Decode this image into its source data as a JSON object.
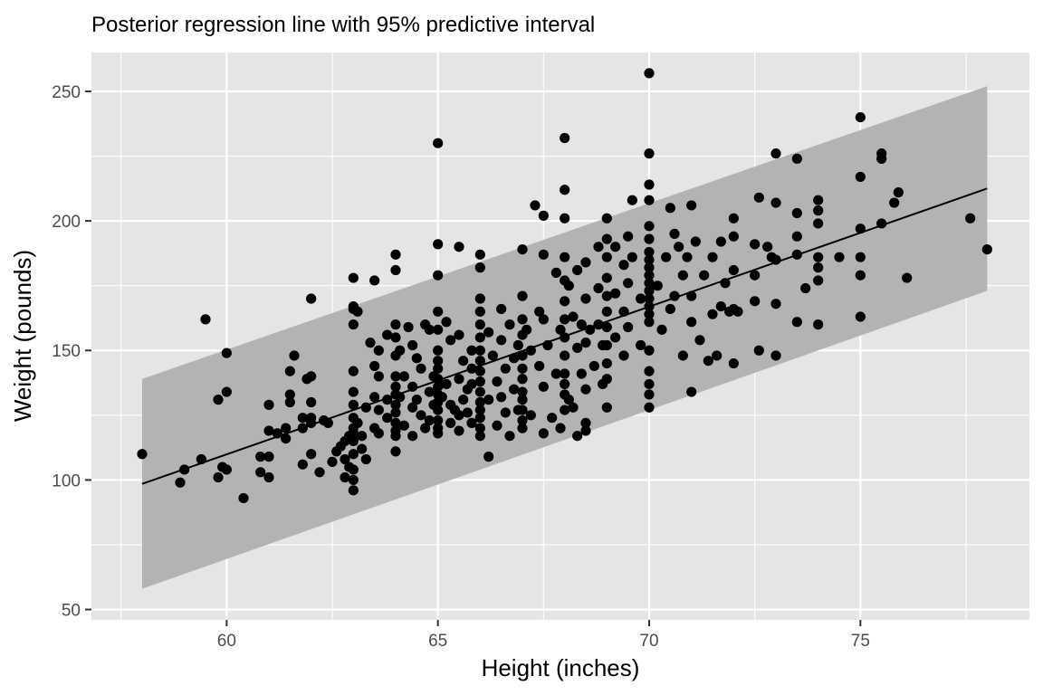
{
  "chart_data": {
    "type": "scatter",
    "title": "Posterior regression line with 95% predictive interval",
    "xlabel": "Height (inches)",
    "ylabel": "Weight (pounds)",
    "xlim": [
      56.8,
      79.0
    ],
    "ylim": [
      46,
      265
    ],
    "x_ticks": [
      60,
      65,
      70,
      75
    ],
    "y_ticks": [
      50,
      100,
      150,
      200,
      250
    ],
    "grid": true,
    "background": "#e5e5e5",
    "grid_color": "#ffffff",
    "point_color": "#000000",
    "band_color": "#b3b3b3",
    "regression_line": {
      "x": [
        58,
        78
      ],
      "y": [
        98.5,
        212.5
      ]
    },
    "interval_band": {
      "x": [
        58,
        78
      ],
      "lower": [
        58,
        173
      ],
      "upper": [
        139,
        252
      ]
    },
    "points": [
      [
        58,
        110
      ],
      [
        58.9,
        99
      ],
      [
        59,
        104
      ],
      [
        59.4,
        108
      ],
      [
        59.5,
        162
      ],
      [
        59.8,
        131
      ],
      [
        59.8,
        101
      ],
      [
        59.9,
        105
      ],
      [
        60,
        149
      ],
      [
        60,
        134
      ],
      [
        60,
        104
      ],
      [
        60.4,
        93
      ],
      [
        60.8,
        109
      ],
      [
        60.8,
        103
      ],
      [
        61,
        129
      ],
      [
        61,
        119
      ],
      [
        61,
        109
      ],
      [
        61,
        101
      ],
      [
        61.2,
        118
      ],
      [
        61.4,
        120
      ],
      [
        61.4,
        116
      ],
      [
        61.5,
        142
      ],
      [
        61.5,
        133
      ],
      [
        61.5,
        130
      ],
      [
        61.6,
        148
      ],
      [
        61.8,
        124
      ],
      [
        61.8,
        120
      ],
      [
        61.8,
        106
      ],
      [
        61.9,
        139
      ],
      [
        62,
        140
      ],
      [
        62,
        130
      ],
      [
        62,
        124
      ],
      [
        62,
        122
      ],
      [
        62,
        110
      ],
      [
        62,
        170
      ],
      [
        62.2,
        103
      ],
      [
        62.3,
        123
      ],
      [
        62.4,
        122
      ],
      [
        62.5,
        107
      ],
      [
        62.6,
        111
      ],
      [
        62.7,
        113
      ],
      [
        62.8,
        115
      ],
      [
        62.8,
        108
      ],
      [
        62.8,
        101
      ],
      [
        62.9,
        117
      ],
      [
        62.9,
        105
      ],
      [
        63,
        178
      ],
      [
        63,
        167
      ],
      [
        63,
        166
      ],
      [
        63,
        160
      ],
      [
        63,
        142
      ],
      [
        63,
        134
      ],
      [
        63,
        129
      ],
      [
        63,
        124
      ],
      [
        63,
        120
      ],
      [
        63,
        118
      ],
      [
        63,
        115
      ],
      [
        63,
        110
      ],
      [
        63,
        104
      ],
      [
        63,
        100
      ],
      [
        63,
        96
      ],
      [
        63.1,
        165
      ],
      [
        63.1,
        122
      ],
      [
        63.2,
        117
      ],
      [
        63.2,
        112
      ],
      [
        63.3,
        108
      ],
      [
        63.3,
        128
      ],
      [
        63.4,
        153
      ],
      [
        63.5,
        177
      ],
      [
        63.5,
        144
      ],
      [
        63.5,
        132
      ],
      [
        63.5,
        120
      ],
      [
        63.6,
        150
      ],
      [
        63.6,
        140
      ],
      [
        63.6,
        127
      ],
      [
        63.6,
        118
      ],
      [
        63.8,
        156
      ],
      [
        63.8,
        131
      ],
      [
        63.8,
        124
      ],
      [
        64,
        187
      ],
      [
        64,
        181
      ],
      [
        64,
        160
      ],
      [
        64,
        155
      ],
      [
        64,
        148
      ],
      [
        64,
        140
      ],
      [
        64,
        136
      ],
      [
        64,
        133
      ],
      [
        64,
        129
      ],
      [
        64,
        126
      ],
      [
        64,
        122
      ],
      [
        64,
        119
      ],
      [
        64,
        117
      ],
      [
        64,
        111
      ],
      [
        64.1,
        150
      ],
      [
        64.1,
        132
      ],
      [
        64.2,
        140
      ],
      [
        64.2,
        121
      ],
      [
        64.3,
        159
      ],
      [
        64.4,
        152
      ],
      [
        64.4,
        136
      ],
      [
        64.4,
        128
      ],
      [
        64.4,
        117
      ],
      [
        64.5,
        147
      ],
      [
        64.5,
        131
      ],
      [
        64.6,
        143
      ],
      [
        64.6,
        125
      ],
      [
        64.7,
        160
      ],
      [
        64.7,
        120
      ],
      [
        64.8,
        158
      ],
      [
        64.8,
        134
      ],
      [
        64.8,
        123
      ],
      [
        64.9,
        140
      ],
      [
        64.9,
        129
      ],
      [
        65,
        230
      ],
      [
        65,
        191
      ],
      [
        65,
        179
      ],
      [
        65,
        165
      ],
      [
        65,
        158
      ],
      [
        65,
        150
      ],
      [
        65,
        146
      ],
      [
        65,
        143
      ],
      [
        65,
        139
      ],
      [
        65,
        136
      ],
      [
        65,
        133
      ],
      [
        65,
        130
      ],
      [
        65,
        127
      ],
      [
        65,
        123
      ],
      [
        65,
        120
      ],
      [
        65,
        118
      ],
      [
        65.1,
        132
      ],
      [
        65.2,
        161
      ],
      [
        65.2,
        137
      ],
      [
        65.3,
        129
      ],
      [
        65.3,
        122
      ],
      [
        65.3,
        154
      ],
      [
        65.4,
        127
      ],
      [
        65.5,
        190
      ],
      [
        65.5,
        156
      ],
      [
        65.5,
        139
      ],
      [
        65.5,
        125
      ],
      [
        65.5,
        119
      ],
      [
        65.6,
        131
      ],
      [
        65.6,
        146
      ],
      [
        65.7,
        135
      ],
      [
        65.7,
        126
      ],
      [
        65.8,
        150
      ],
      [
        65.8,
        143
      ],
      [
        65.8,
        137
      ],
      [
        65.8,
        122
      ],
      [
        66,
        187
      ],
      [
        66,
        182
      ],
      [
        66,
        170
      ],
      [
        66,
        165
      ],
      [
        66,
        160
      ],
      [
        66,
        155
      ],
      [
        66,
        150
      ],
      [
        66,
        146
      ],
      [
        66,
        142
      ],
      [
        66,
        138
      ],
      [
        66,
        134
      ],
      [
        66,
        130
      ],
      [
        66,
        127
      ],
      [
        66,
        124
      ],
      [
        66,
        120
      ],
      [
        66,
        117
      ],
      [
        66.2,
        131
      ],
      [
        66.2,
        157
      ],
      [
        66.2,
        109
      ],
      [
        66.3,
        148
      ],
      [
        66.4,
        138
      ],
      [
        66.4,
        121
      ],
      [
        66.5,
        166
      ],
      [
        66.5,
        154
      ],
      [
        66.5,
        132
      ],
      [
        66.6,
        143
      ],
      [
        66.6,
        126
      ],
      [
        66.7,
        160
      ],
      [
        66.7,
        117
      ],
      [
        66.8,
        147
      ],
      [
        66.8,
        135
      ],
      [
        66.9,
        152
      ],
      [
        66.9,
        127
      ],
      [
        67,
        189
      ],
      [
        67,
        171
      ],
      [
        67,
        162
      ],
      [
        67,
        156
      ],
      [
        67,
        148
      ],
      [
        67,
        143
      ],
      [
        67,
        139
      ],
      [
        67,
        134
      ],
      [
        67,
        131
      ],
      [
        67,
        127
      ],
      [
        67,
        123
      ],
      [
        67,
        120
      ],
      [
        67.1,
        158
      ],
      [
        67.2,
        150
      ],
      [
        67.2,
        125
      ],
      [
        67.3,
        206
      ],
      [
        67.4,
        165
      ],
      [
        67.4,
        144
      ],
      [
        67.5,
        202
      ],
      [
        67.5,
        187
      ],
      [
        67.5,
        162
      ],
      [
        67.5,
        136
      ],
      [
        67.5,
        118
      ],
      [
        67.6,
        152
      ],
      [
        67.7,
        124
      ],
      [
        67.8,
        180
      ],
      [
        67.8,
        141
      ],
      [
        67.9,
        158
      ],
      [
        67.9,
        120
      ],
      [
        68,
        232
      ],
      [
        68,
        212
      ],
      [
        68,
        201
      ],
      [
        68,
        186
      ],
      [
        68,
        177
      ],
      [
        68,
        169
      ],
      [
        68,
        162
      ],
      [
        68,
        155
      ],
      [
        68,
        148
      ],
      [
        68,
        141
      ],
      [
        68,
        137
      ],
      [
        68,
        133
      ],
      [
        68,
        127
      ],
      [
        68.1,
        175
      ],
      [
        68.1,
        131
      ],
      [
        68.2,
        163
      ],
      [
        68.2,
        128
      ],
      [
        68.3,
        181
      ],
      [
        68.3,
        151
      ],
      [
        68.3,
        117
      ],
      [
        68.4,
        160
      ],
      [
        68.4,
        141
      ],
      [
        68.5,
        184
      ],
      [
        68.5,
        170
      ],
      [
        68.5,
        153
      ],
      [
        68.5,
        135
      ],
      [
        68.5,
        122
      ],
      [
        68.5,
        119
      ],
      [
        68.6,
        158
      ],
      [
        68.7,
        144
      ],
      [
        68.8,
        190
      ],
      [
        68.8,
        174
      ],
      [
        68.8,
        160
      ],
      [
        68.9,
        152
      ],
      [
        68.9,
        137
      ],
      [
        69,
        201
      ],
      [
        69,
        193
      ],
      [
        69,
        186
      ],
      [
        69,
        178
      ],
      [
        69,
        171
      ],
      [
        69,
        165
      ],
      [
        69,
        159
      ],
      [
        69,
        152
      ],
      [
        69,
        145
      ],
      [
        69,
        139
      ],
      [
        69,
        128
      ],
      [
        69.2,
        190
      ],
      [
        69.2,
        172
      ],
      [
        69.2,
        155
      ],
      [
        69.4,
        183
      ],
      [
        69.4,
        165
      ],
      [
        69.4,
        148
      ],
      [
        69.5,
        194
      ],
      [
        69.5,
        176
      ],
      [
        69.5,
        159
      ],
      [
        69.6,
        208
      ],
      [
        69.6,
        186
      ],
      [
        69.8,
        170
      ],
      [
        69.8,
        152
      ],
      [
        70,
        257
      ],
      [
        70,
        226
      ],
      [
        70,
        214
      ],
      [
        70,
        208
      ],
      [
        70,
        198
      ],
      [
        70,
        193
      ],
      [
        70,
        188
      ],
      [
        70,
        185
      ],
      [
        70,
        182
      ],
      [
        70,
        179
      ],
      [
        70,
        176
      ],
      [
        70,
        173
      ],
      [
        70,
        170
      ],
      [
        70,
        167
      ],
      [
        70,
        164
      ],
      [
        70,
        161
      ],
      [
        70,
        150
      ],
      [
        70,
        142
      ],
      [
        70,
        137
      ],
      [
        70,
        133
      ],
      [
        70,
        128
      ],
      [
        70.2,
        175
      ],
      [
        70.3,
        158
      ],
      [
        70.4,
        186
      ],
      [
        70.5,
        205
      ],
      [
        70.5,
        166
      ],
      [
        70.6,
        195
      ],
      [
        70.6,
        171
      ],
      [
        70.7,
        190
      ],
      [
        70.8,
        148
      ],
      [
        70.8,
        179
      ],
      [
        70.9,
        186
      ],
      [
        71,
        206
      ],
      [
        71,
        171
      ],
      [
        71,
        161
      ],
      [
        71,
        134
      ],
      [
        71.1,
        192
      ],
      [
        71.2,
        154
      ],
      [
        71.3,
        179
      ],
      [
        71.4,
        146
      ],
      [
        71.5,
        186
      ],
      [
        71.5,
        164
      ],
      [
        71.6,
        148
      ],
      [
        71.7,
        192
      ],
      [
        71.7,
        167
      ],
      [
        71.8,
        176
      ],
      [
        71.9,
        165
      ],
      [
        72,
        201
      ],
      [
        72,
        194
      ],
      [
        72,
        181
      ],
      [
        72,
        166
      ],
      [
        72,
        145
      ],
      [
        72.1,
        165
      ],
      [
        72.5,
        191
      ],
      [
        72.5,
        179
      ],
      [
        72.5,
        169
      ],
      [
        72.6,
        209
      ],
      [
        72.6,
        150
      ],
      [
        72.8,
        190
      ],
      [
        72.9,
        186
      ],
      [
        73,
        226
      ],
      [
        73,
        207
      ],
      [
        73,
        185
      ],
      [
        73,
        168
      ],
      [
        73,
        148
      ],
      [
        73.5,
        224
      ],
      [
        73.5,
        203
      ],
      [
        73.5,
        194
      ],
      [
        73.5,
        187
      ],
      [
        73.5,
        161
      ],
      [
        73.7,
        174
      ],
      [
        74,
        208
      ],
      [
        74,
        204
      ],
      [
        74,
        199
      ],
      [
        74,
        186
      ],
      [
        74,
        182
      ],
      [
        74,
        177
      ],
      [
        74,
        160
      ],
      [
        74.5,
        186
      ],
      [
        75,
        240
      ],
      [
        75,
        217
      ],
      [
        75,
        197
      ],
      [
        75,
        186
      ],
      [
        75,
        179
      ],
      [
        75,
        163
      ],
      [
        75.5,
        226
      ],
      [
        75.5,
        224
      ],
      [
        75.5,
        199
      ],
      [
        75.8,
        207
      ],
      [
        75.9,
        211
      ],
      [
        76.1,
        178
      ],
      [
        77.6,
        201
      ],
      [
        78,
        189
      ]
    ]
  }
}
